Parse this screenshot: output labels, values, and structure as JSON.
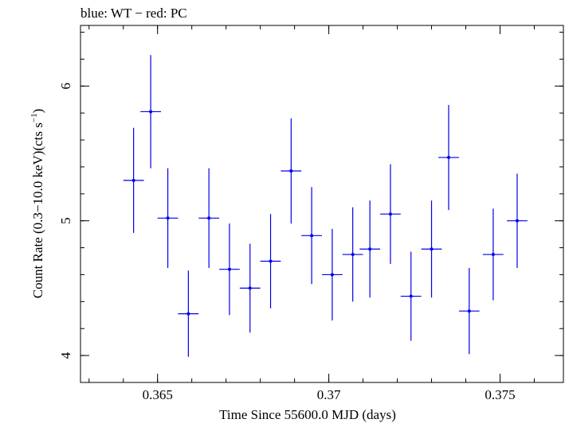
{
  "chart_data": {
    "type": "scatter",
    "title": "blue: WT − red: PC",
    "xlabel": "Time Since 55600.0 MJD (days)",
    "ylabel": "Count Rate (0.3−10.0 keV)(cts s",
    "ylabel_sup": "−1",
    "ylabel_close": ")",
    "xlim": [
      0.36275,
      0.37685
    ],
    "ylim": [
      3.8,
      6.45
    ],
    "x_ticks": [
      {
        "value": 0.365,
        "label": "0.365"
      },
      {
        "value": 0.37,
        "label": "0.37"
      },
      {
        "value": 0.375,
        "label": "0.375"
      }
    ],
    "y_ticks": [
      {
        "value": 4,
        "label": "4"
      },
      {
        "value": 5,
        "label": "5"
      },
      {
        "value": 6,
        "label": "6"
      }
    ],
    "grid": false,
    "series": [
      {
        "color": "#0000ee",
        "x_half_width": 0.0003,
        "points": [
          {
            "x": 0.3643,
            "y": 5.3,
            "yerr": 0.39
          },
          {
            "x": 0.3648,
            "y": 5.81,
            "yerr": 0.42
          },
          {
            "x": 0.3653,
            "y": 5.02,
            "yerr": 0.37
          },
          {
            "x": 0.3659,
            "y": 4.31,
            "yerr": 0.32
          },
          {
            "x": 0.3665,
            "y": 5.02,
            "yerr": 0.37
          },
          {
            "x": 0.3671,
            "y": 4.64,
            "yerr": 0.34
          },
          {
            "x": 0.3677,
            "y": 4.5,
            "yerr": 0.33
          },
          {
            "x": 0.3683,
            "y": 4.7,
            "yerr": 0.35
          },
          {
            "x": 0.3689,
            "y": 5.37,
            "yerr": 0.39
          },
          {
            "x": 0.3695,
            "y": 4.89,
            "yerr": 0.36
          },
          {
            "x": 0.3701,
            "y": 4.6,
            "yerr": 0.34
          },
          {
            "x": 0.3707,
            "y": 4.75,
            "yerr": 0.35
          },
          {
            "x": 0.3712,
            "y": 4.79,
            "yerr": 0.36
          },
          {
            "x": 0.3718,
            "y": 5.05,
            "yerr": 0.37
          },
          {
            "x": 0.3724,
            "y": 4.44,
            "yerr": 0.33
          },
          {
            "x": 0.373,
            "y": 4.79,
            "yerr": 0.36
          },
          {
            "x": 0.3735,
            "y": 5.47,
            "yerr": 0.39
          },
          {
            "x": 0.3741,
            "y": 4.33,
            "yerr": 0.32
          },
          {
            "x": 0.3748,
            "y": 4.75,
            "yerr": 0.34
          },
          {
            "x": 0.3755,
            "y": 5.0,
            "yerr": 0.35
          }
        ]
      }
    ]
  }
}
